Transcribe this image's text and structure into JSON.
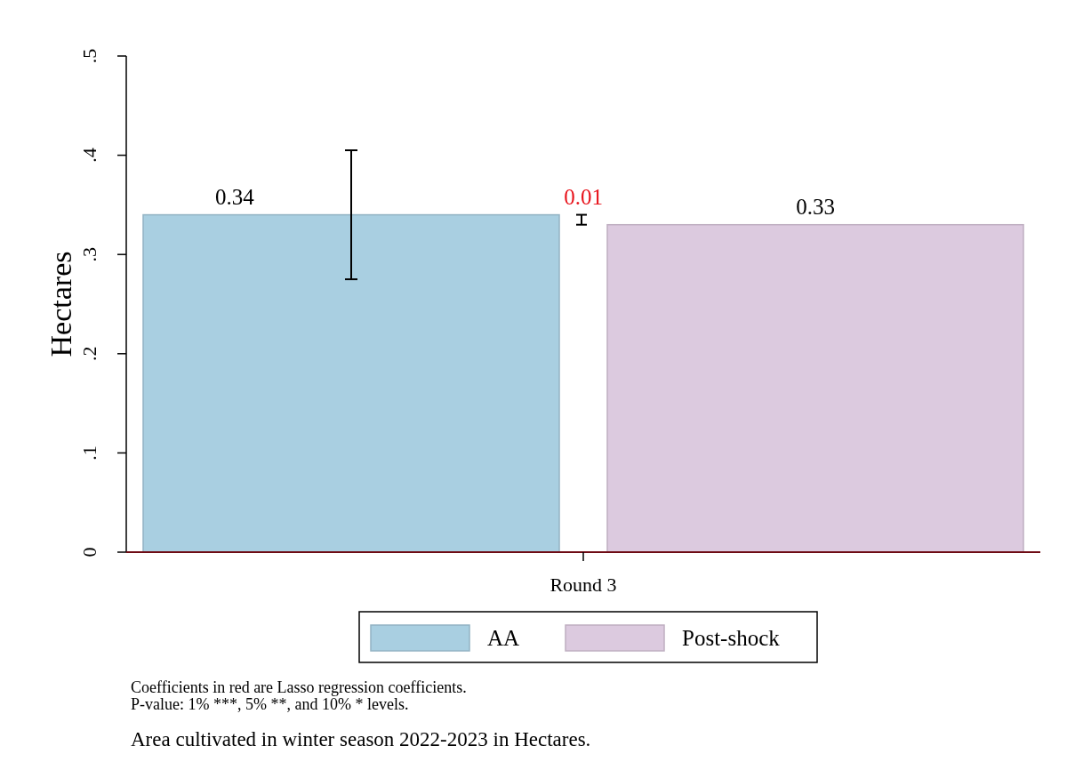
{
  "chart_data": {
    "type": "bar",
    "categories": [
      "Round 3"
    ],
    "ylabel": "Hectares",
    "ylim": [
      0,
      0.5
    ],
    "yticks": [
      {
        "value": 0,
        "label": "0"
      },
      {
        "value": 0.1,
        "label": ".1"
      },
      {
        "value": 0.2,
        "label": ".2"
      },
      {
        "value": 0.3,
        "label": ".3"
      },
      {
        "value": 0.4,
        "label": ".4"
      },
      {
        "value": 0.5,
        "label": ".5"
      }
    ],
    "series": [
      {
        "name": "AA",
        "color": "#a9cfe1",
        "values": [
          0.34
        ],
        "errors": [
          [
            0.275,
            0.405
          ]
        ]
      },
      {
        "name": "Post-shock",
        "color": "#dccadf",
        "values": [
          0.33
        ]
      }
    ],
    "data_labels": true,
    "legend": "bottom",
    "grid": false,
    "annotations": [
      "0.01",
      "Coefficients in red are Lasso regression coefficients.",
      "P-value: 1% ***, 5% **, and 10% * levels.",
      "Area cultivated in winter season 2022-2023 in Hectares."
    ]
  }
}
